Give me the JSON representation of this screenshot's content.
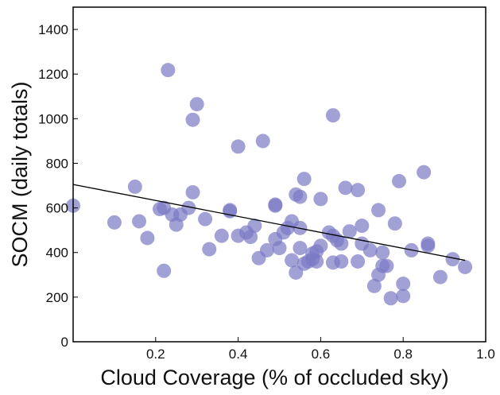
{
  "chart_data": {
    "type": "scatter",
    "xlabel": "Cloud Coverage (% of occluded sky)",
    "ylabel": "SOCM (daily totals)",
    "xlim": [
      0.0,
      1.0
    ],
    "ylim": [
      0,
      1500
    ],
    "xticks": [
      0.2,
      0.4,
      0.6,
      0.8,
      1.0
    ],
    "xtick_labels": [
      "0.2",
      "0.4",
      "0.6",
      "0.8",
      "1.0"
    ],
    "yticks": [
      0,
      200,
      400,
      600,
      800,
      1000,
      1200,
      1400
    ],
    "ytick_labels": [
      "0",
      "200",
      "400",
      "600",
      "800",
      "1000",
      "1200",
      "1400"
    ],
    "grid": false,
    "marker_color": "#7b79c5",
    "trendline_color": "#000000",
    "trendline": {
      "x": [
        0.0,
        0.95
      ],
      "y": [
        705,
        365
      ]
    },
    "points": [
      {
        "x": 0.0,
        "y": 610
      },
      {
        "x": 0.1,
        "y": 535
      },
      {
        "x": 0.15,
        "y": 695
      },
      {
        "x": 0.16,
        "y": 540
      },
      {
        "x": 0.18,
        "y": 465
      },
      {
        "x": 0.21,
        "y": 595
      },
      {
        "x": 0.22,
        "y": 600
      },
      {
        "x": 0.22,
        "y": 318
      },
      {
        "x": 0.23,
        "y": 1218
      },
      {
        "x": 0.24,
        "y": 570
      },
      {
        "x": 0.25,
        "y": 525
      },
      {
        "x": 0.26,
        "y": 570
      },
      {
        "x": 0.28,
        "y": 600
      },
      {
        "x": 0.29,
        "y": 995
      },
      {
        "x": 0.29,
        "y": 670
      },
      {
        "x": 0.3,
        "y": 1065
      },
      {
        "x": 0.32,
        "y": 550
      },
      {
        "x": 0.33,
        "y": 415
      },
      {
        "x": 0.36,
        "y": 475
      },
      {
        "x": 0.38,
        "y": 590
      },
      {
        "x": 0.38,
        "y": 585
      },
      {
        "x": 0.4,
        "y": 875
      },
      {
        "x": 0.4,
        "y": 475
      },
      {
        "x": 0.42,
        "y": 490
      },
      {
        "x": 0.43,
        "y": 470
      },
      {
        "x": 0.44,
        "y": 520
      },
      {
        "x": 0.45,
        "y": 375
      },
      {
        "x": 0.46,
        "y": 900
      },
      {
        "x": 0.47,
        "y": 410
      },
      {
        "x": 0.49,
        "y": 615
      },
      {
        "x": 0.49,
        "y": 610
      },
      {
        "x": 0.49,
        "y": 460
      },
      {
        "x": 0.5,
        "y": 420
      },
      {
        "x": 0.51,
        "y": 490
      },
      {
        "x": 0.52,
        "y": 510
      },
      {
        "x": 0.53,
        "y": 540
      },
      {
        "x": 0.53,
        "y": 365
      },
      {
        "x": 0.54,
        "y": 660
      },
      {
        "x": 0.54,
        "y": 310
      },
      {
        "x": 0.55,
        "y": 650
      },
      {
        "x": 0.55,
        "y": 510
      },
      {
        "x": 0.55,
        "y": 420
      },
      {
        "x": 0.56,
        "y": 350
      },
      {
        "x": 0.56,
        "y": 730
      },
      {
        "x": 0.57,
        "y": 360
      },
      {
        "x": 0.58,
        "y": 370
      },
      {
        "x": 0.58,
        "y": 395
      },
      {
        "x": 0.59,
        "y": 405
      },
      {
        "x": 0.59,
        "y": 360
      },
      {
        "x": 0.6,
        "y": 640
      },
      {
        "x": 0.6,
        "y": 430
      },
      {
        "x": 0.62,
        "y": 490
      },
      {
        "x": 0.63,
        "y": 1015
      },
      {
        "x": 0.63,
        "y": 475
      },
      {
        "x": 0.63,
        "y": 355
      },
      {
        "x": 0.64,
        "y": 455
      },
      {
        "x": 0.65,
        "y": 440
      },
      {
        "x": 0.65,
        "y": 360
      },
      {
        "x": 0.66,
        "y": 690
      },
      {
        "x": 0.67,
        "y": 495
      },
      {
        "x": 0.69,
        "y": 680
      },
      {
        "x": 0.69,
        "y": 360
      },
      {
        "x": 0.7,
        "y": 520
      },
      {
        "x": 0.7,
        "y": 440
      },
      {
        "x": 0.72,
        "y": 410
      },
      {
        "x": 0.73,
        "y": 250
      },
      {
        "x": 0.74,
        "y": 590
      },
      {
        "x": 0.74,
        "y": 300
      },
      {
        "x": 0.75,
        "y": 400
      },
      {
        "x": 0.75,
        "y": 340
      },
      {
        "x": 0.76,
        "y": 340
      },
      {
        "x": 0.77,
        "y": 195
      },
      {
        "x": 0.78,
        "y": 530
      },
      {
        "x": 0.79,
        "y": 720
      },
      {
        "x": 0.8,
        "y": 260
      },
      {
        "x": 0.8,
        "y": 205
      },
      {
        "x": 0.82,
        "y": 410
      },
      {
        "x": 0.85,
        "y": 760
      },
      {
        "x": 0.86,
        "y": 440
      },
      {
        "x": 0.86,
        "y": 430
      },
      {
        "x": 0.89,
        "y": 290
      },
      {
        "x": 0.92,
        "y": 370
      },
      {
        "x": 0.95,
        "y": 335
      }
    ]
  }
}
